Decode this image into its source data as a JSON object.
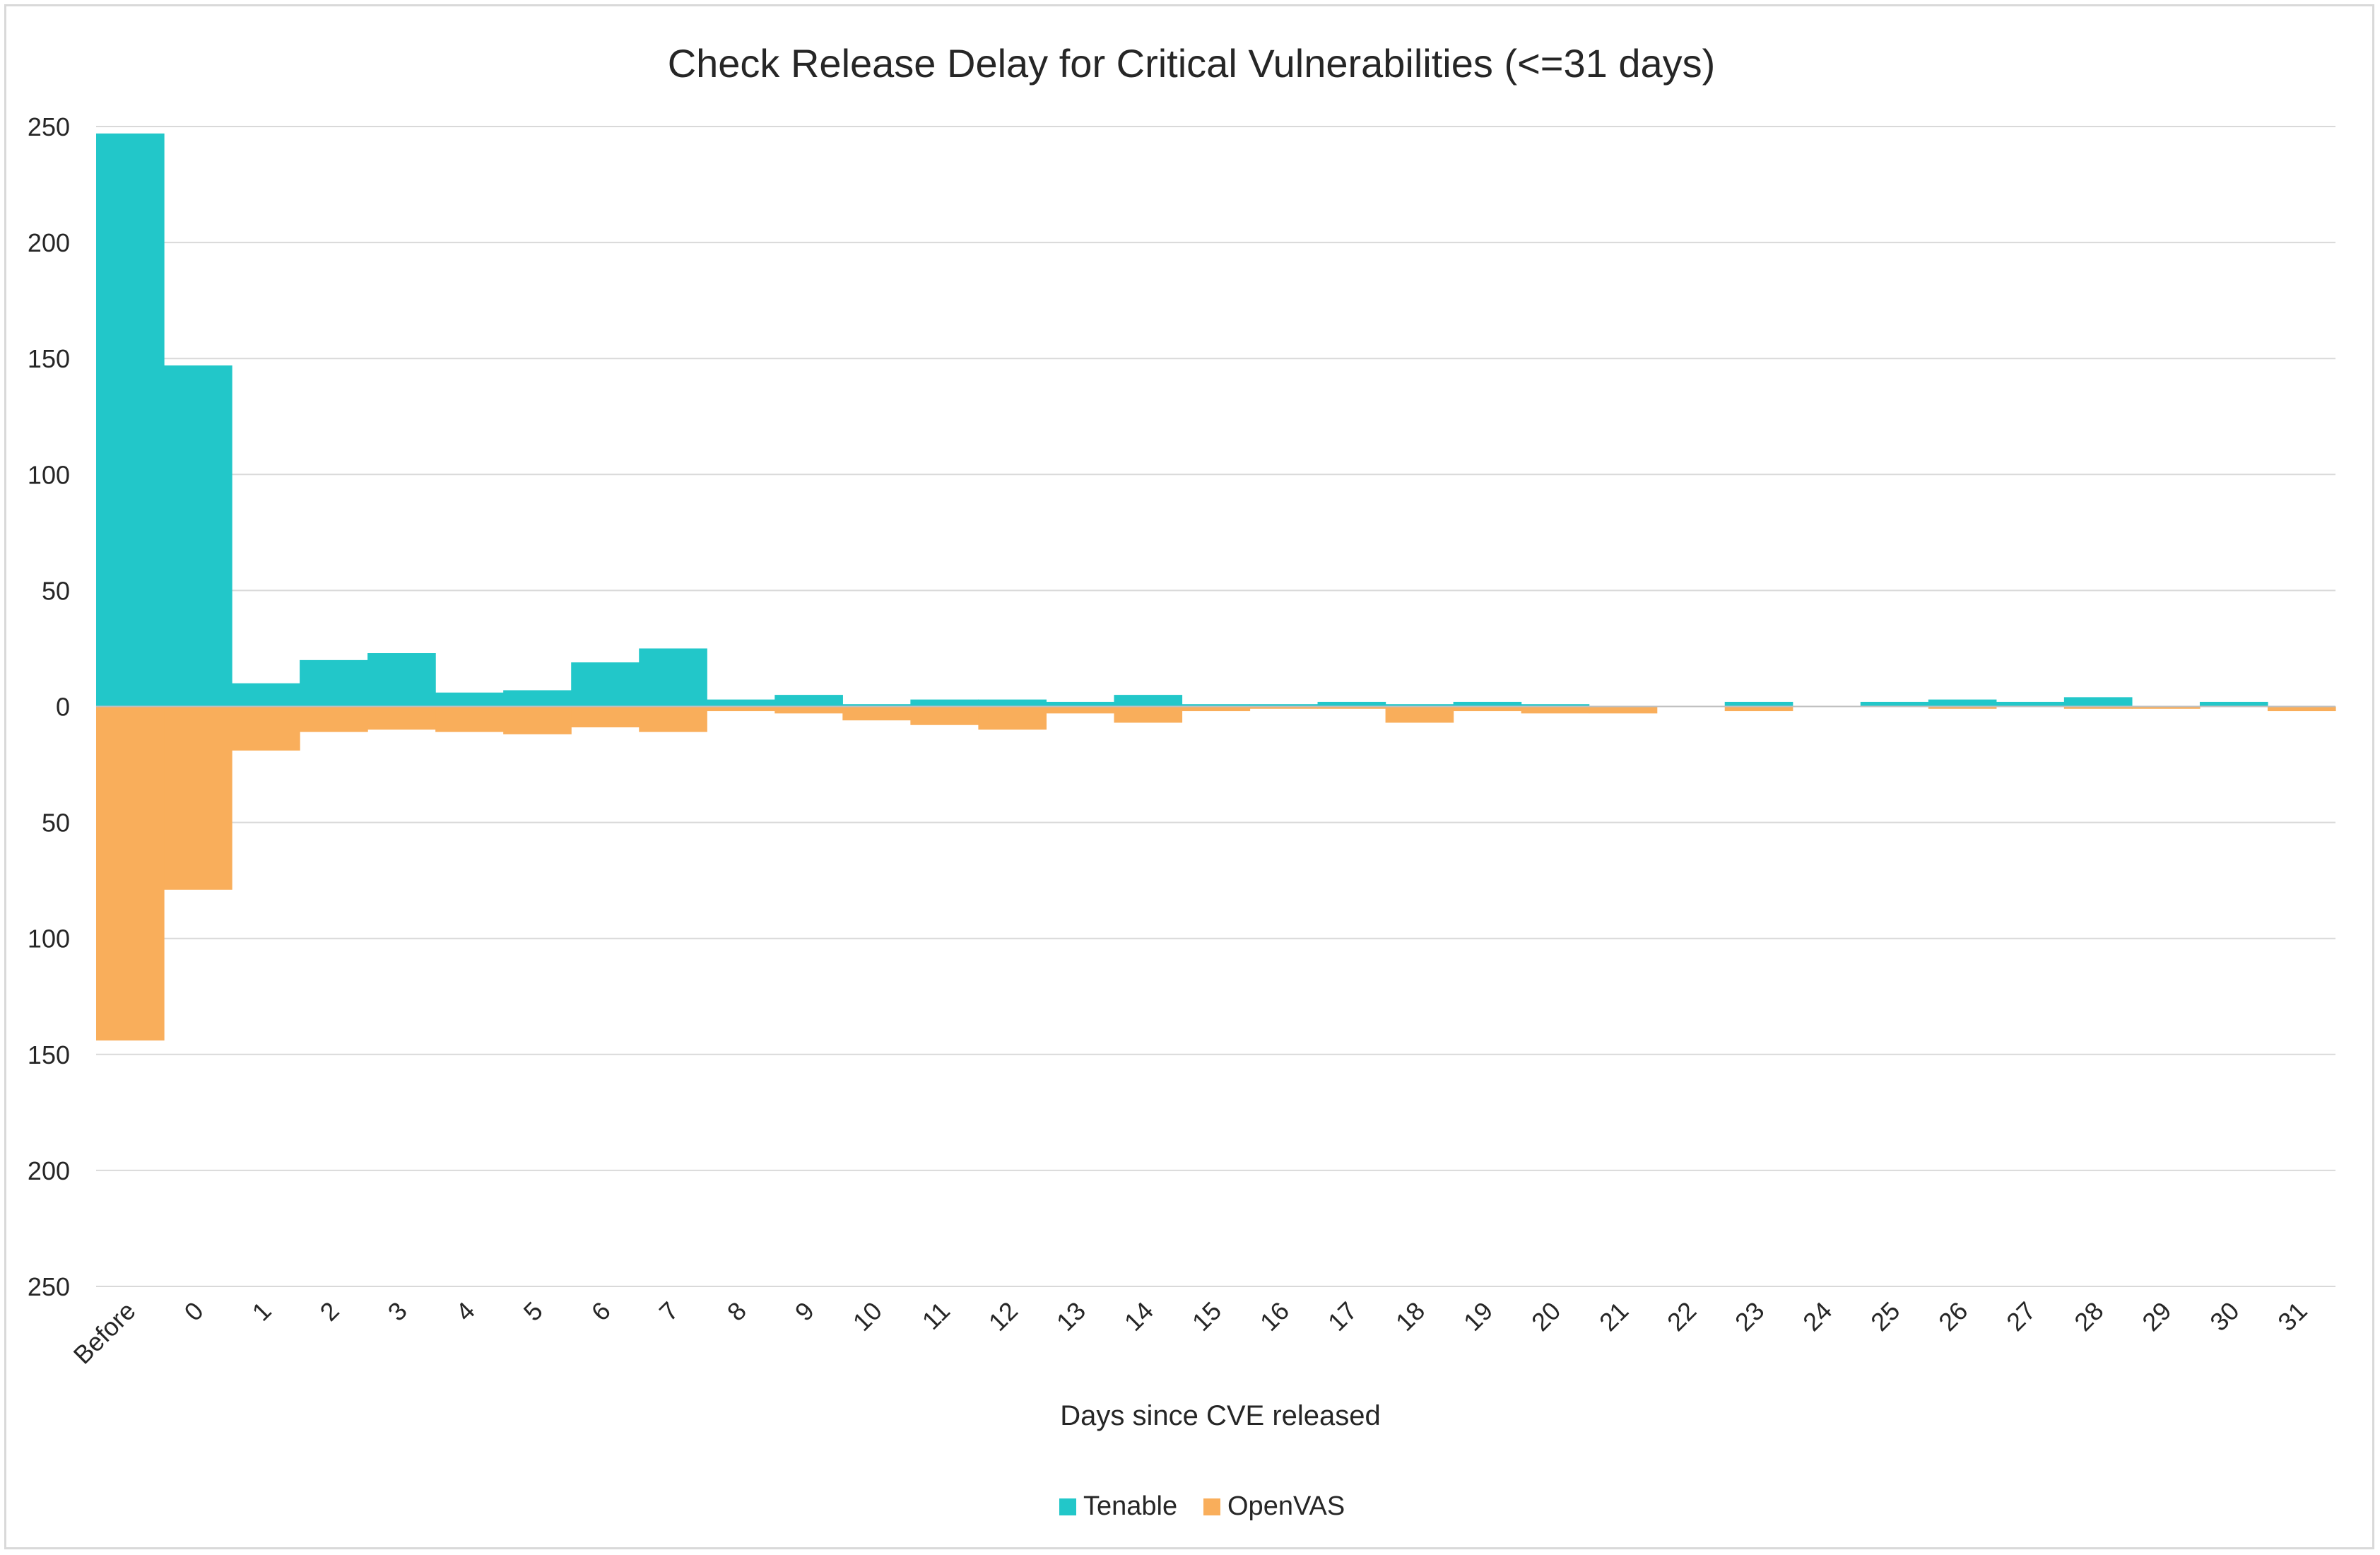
{
  "chart_data": {
    "type": "bar",
    "title": "Check Release Delay for Critical Vulnerabilities (<=31 days)",
    "xlabel": "Days since CVE released",
    "ylabel": "",
    "categories": [
      "Before",
      "0",
      "1",
      "2",
      "3",
      "4",
      "5",
      "6",
      "7",
      "8",
      "9",
      "10",
      "11",
      "12",
      "13",
      "14",
      "15",
      "16",
      "17",
      "18",
      "19",
      "20",
      "21",
      "22",
      "23",
      "24",
      "25",
      "26",
      "27",
      "28",
      "29",
      "30",
      "31"
    ],
    "y_tick_labels": [
      "250",
      "200",
      "150",
      "100",
      "50",
      "0",
      "50",
      "100",
      "150",
      "200",
      "250"
    ],
    "ylim": [
      -250,
      250
    ],
    "series": [
      {
        "name": "Tenable",
        "color": "#22c7c9",
        "direction": "up",
        "values": [
          247,
          147,
          10,
          20,
          23,
          6,
          7,
          19,
          25,
          3,
          5,
          1,
          3,
          3,
          2,
          5,
          1,
          1,
          2,
          1,
          2,
          1,
          0,
          0,
          2,
          0,
          2,
          3,
          2,
          4,
          0,
          2,
          0
        ]
      },
      {
        "name": "OpenVAS",
        "color": "#f9ae5b",
        "direction": "down",
        "values": [
          144,
          79,
          19,
          11,
          10,
          11,
          12,
          9,
          11,
          2,
          3,
          6,
          8,
          10,
          3,
          7,
          2,
          1,
          1,
          7,
          2,
          3,
          3,
          0,
          2,
          0,
          0,
          1,
          0,
          1,
          1,
          0,
          2
        ]
      }
    ],
    "grid": true,
    "legend_position": "bottom-center"
  }
}
